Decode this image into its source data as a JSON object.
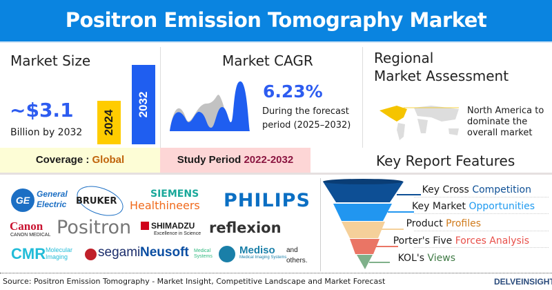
{
  "title": "Positron Emission Tomography Market",
  "market_size": {
    "heading": "Market Size",
    "value": "~$3.1",
    "unit": "Billion by 2032",
    "bar_labels": [
      "2024",
      "2032"
    ],
    "colors": {
      "2024": "#ffcc00",
      "2032": "#1f5ef0"
    }
  },
  "cagr": {
    "heading": "Market CAGR",
    "value": "6.23%",
    "line1": "During the forecast",
    "line2": "period (2025–2032)"
  },
  "regional": {
    "heading_line1": "Regional",
    "heading_line2": "Market Assessment",
    "text_line1": "North America to",
    "text_line2": "dominate the",
    "text_line3": "overall market"
  },
  "coverage": {
    "label": "Coverage : ",
    "value": "Global"
  },
  "study_period": {
    "label": "Study Period ",
    "value": "2022-2032"
  },
  "key_features": {
    "heading": "Key Report Features",
    "items": [
      {
        "a": "Key Cross ",
        "b": "Competition",
        "color": "#0d4f95"
      },
      {
        "a": "Key Market ",
        "b": "Opportunities",
        "color": "#1e9af0"
      },
      {
        "a": "Product ",
        "b": "Profiles",
        "color": "#d07a1a"
      },
      {
        "a": "Porter's Five ",
        "b": "Forces Analysis",
        "color": "#e8504a"
      },
      {
        "a": "KOL's ",
        "b": "Views",
        "color": "#3f7a45"
      }
    ]
  },
  "companies": {
    "ge": [
      "General",
      "Electric"
    ],
    "bruker": "BRUKER",
    "siemens": [
      "SIEMENS",
      "Healthineers"
    ],
    "philips": "PHILIPS",
    "canon": [
      "Canon",
      "CANON MEDICAL"
    ],
    "positron": "Positron",
    "shimadzu": [
      "SHIMADZU",
      "Excellence in Science"
    ],
    "reflexion": "reflexion",
    "cmr": [
      "CMR",
      "Molecular",
      "Imaging"
    ],
    "segami": "segami",
    "neusoft": [
      "Neusoft",
      "Medical",
      "Systems"
    ],
    "mediso": [
      "Mediso",
      "Medical Imaging Systems"
    ],
    "others": [
      "and",
      "others."
    ]
  },
  "footer": {
    "source": "Source: Positron Emission Tomography - Market Insight, Competitive Landscape and Market Forecast",
    "brand": "DELVEINSIGHT"
  }
}
